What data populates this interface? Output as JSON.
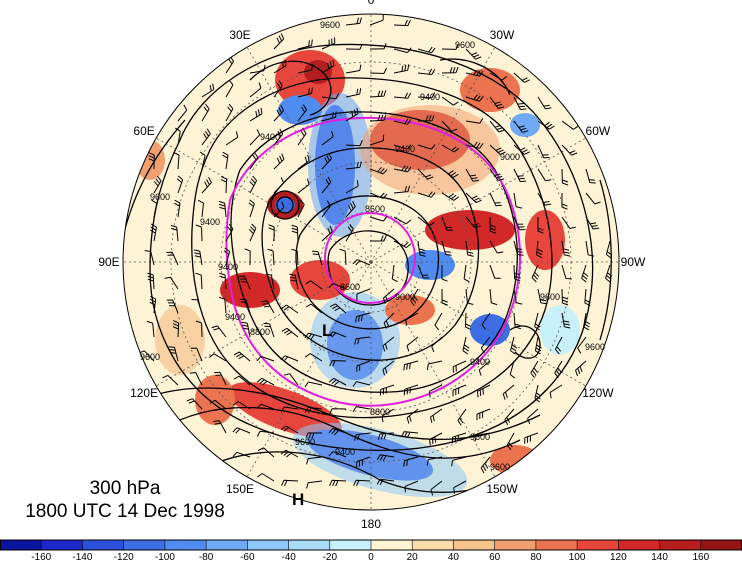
{
  "map": {
    "longitude_labels": [
      {
        "text": "0",
        "lon": 0
      },
      {
        "text": "30W",
        "lon": -30
      },
      {
        "text": "60W",
        "lon": -60
      },
      {
        "text": "90W",
        "lon": -90
      },
      {
        "text": "120W",
        "lon": -120
      },
      {
        "text": "150W",
        "lon": -150
      },
      {
        "text": "180",
        "lon": 180
      },
      {
        "text": "150E",
        "lon": 150
      },
      {
        "text": "120E",
        "lon": 120
      },
      {
        "text": "90E",
        "lon": 90
      },
      {
        "text": "60E",
        "lon": 60
      },
      {
        "text": "30E",
        "lon": 30
      }
    ],
    "contour_labels": [
      "9600",
      "9600",
      "9400",
      "9600",
      "9400",
      "9000",
      "8600",
      "9600",
      "9400",
      "8800",
      "9600",
      "9400",
      "9400",
      "9600",
      "9600",
      "8800",
      "9400",
      "9400",
      "8600",
      "9000",
      "9600",
      "9400",
      "9600"
    ],
    "pressure_markers": [
      {
        "text": "L"
      },
      {
        "text": "H"
      }
    ],
    "colors": {
      "contour": "#000000",
      "magenta_contour": "#e020e0",
      "grid": "#555555"
    }
  },
  "title": {
    "level": "300 hPa",
    "time": "1800 UTC 14 Dec 1998"
  },
  "colorbar": {
    "colors": [
      "#1e28c8",
      "#2d50dc",
      "#3c6ee6",
      "#508cf0",
      "#6eaaf5",
      "#8cc8fa",
      "#aadcfa",
      "#c8f0fa",
      "#fff5d2",
      "#fadcaa",
      "#f5c38c",
      "#f0a06e",
      "#eb7350",
      "#e6463c",
      "#d22828",
      "#b41e1e",
      "#961414"
    ],
    "tick_labels": [
      "-160",
      "-140",
      "-120",
      "-100",
      "-80",
      "-60",
      "-40",
      "-20",
      "0",
      "20",
      "40",
      "60",
      "80",
      "100",
      "120",
      "140",
      "160"
    ]
  }
}
